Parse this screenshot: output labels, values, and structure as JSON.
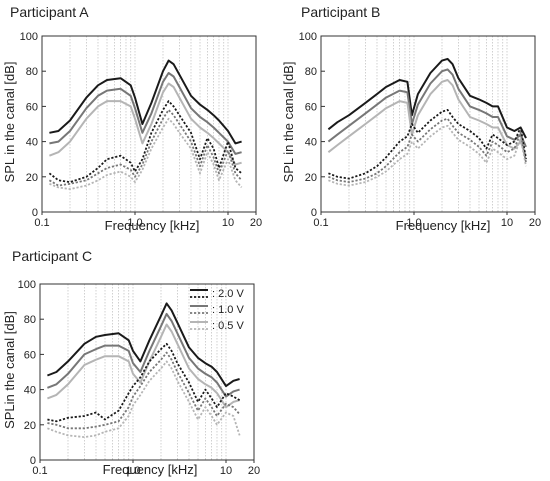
{
  "chart_data": [
    {
      "type": "line",
      "title": "Participant A",
      "xlabel": "Frequency [kHz]",
      "ylabel": "SPL in the canal [dB]",
      "xscale": "log",
      "xlim": [
        0.1,
        20
      ],
      "ylim": [
        0,
        100
      ],
      "xticks": [
        "0.1",
        "1.0",
        "10",
        "20"
      ],
      "yticks": [
        "0",
        "20",
        "40",
        "60",
        "80",
        "100"
      ],
      "grid": "vertical",
      "series": [
        {
          "level": "2.0 V",
          "kind": "solid",
          "color": "#1a1a1a",
          "x": [
            0.12,
            0.15,
            0.2,
            0.3,
            0.4,
            0.5,
            0.7,
            0.9,
            1.0,
            1.2,
            1.5,
            2.0,
            2.3,
            2.6,
            3.0,
            4.0,
            5.0,
            6.0,
            7.0,
            8.0,
            10.0,
            12.0,
            14.0
          ],
          "y": [
            45,
            46,
            52,
            65,
            72,
            75,
            76,
            72,
            65,
            50,
            62,
            80,
            86,
            84,
            78,
            66,
            61,
            58,
            55,
            52,
            46,
            39,
            40
          ]
        },
        {
          "level": "1.0 V",
          "kind": "solid",
          "color": "#777777",
          "x": [
            0.12,
            0.15,
            0.2,
            0.3,
            0.4,
            0.5,
            0.7,
            0.9,
            1.0,
            1.2,
            1.5,
            2.0,
            2.3,
            2.6,
            3.0,
            4.0,
            5.0,
            6.0,
            7.0,
            8.0,
            10.0,
            12.0,
            14.0
          ],
          "y": [
            39,
            40,
            46,
            59,
            66,
            69,
            70,
            66,
            59,
            45,
            56,
            74,
            79,
            77,
            71,
            59,
            54,
            51,
            48,
            45,
            40,
            33,
            34
          ]
        },
        {
          "level": "0.5 V",
          "kind": "solid",
          "color": "#b5b5b5",
          "x": [
            0.12,
            0.15,
            0.2,
            0.3,
            0.4,
            0.5,
            0.7,
            0.9,
            1.0,
            1.2,
            1.5,
            2.0,
            2.3,
            2.6,
            3.0,
            4.0,
            5.0,
            6.0,
            7.0,
            8.0,
            10.0,
            12.0,
            14.0
          ],
          "y": [
            32,
            34,
            40,
            53,
            60,
            63,
            63,
            60,
            53,
            39,
            50,
            68,
            73,
            71,
            65,
            53,
            48,
            45,
            42,
            39,
            34,
            27,
            28
          ]
        },
        {
          "level": "2.0 V",
          "kind": "dotted",
          "color": "#1a1a1a",
          "x": [
            0.12,
            0.15,
            0.2,
            0.3,
            0.4,
            0.5,
            0.7,
            0.9,
            1.0,
            1.2,
            1.5,
            2.0,
            2.3,
            2.6,
            3.0,
            4.0,
            5.0,
            6.0,
            7.0,
            8.0,
            10.0,
            12.0,
            14.0
          ],
          "y": [
            22,
            18,
            17,
            20,
            25,
            30,
            32,
            28,
            23,
            30,
            45,
            58,
            63,
            60,
            55,
            45,
            30,
            42,
            36,
            25,
            40,
            25,
            22
          ]
        },
        {
          "level": "1.0 V",
          "kind": "dotted",
          "color": "#777777",
          "x": [
            0.12,
            0.15,
            0.2,
            0.3,
            0.4,
            0.5,
            0.7,
            0.9,
            1.0,
            1.2,
            1.5,
            2.0,
            2.3,
            2.6,
            3.0,
            4.0,
            5.0,
            6.0,
            7.0,
            8.0,
            10.0,
            12.0,
            14.0
          ],
          "y": [
            18,
            15,
            16,
            18,
            22,
            25,
            27,
            24,
            20,
            27,
            40,
            53,
            58,
            55,
            50,
            40,
            26,
            38,
            31,
            22,
            35,
            22,
            18
          ]
        },
        {
          "level": "0.5 V",
          "kind": "dotted",
          "color": "#b5b5b5",
          "x": [
            0.12,
            0.15,
            0.2,
            0.3,
            0.4,
            0.5,
            0.7,
            0.9,
            1.0,
            1.2,
            1.5,
            2.0,
            2.3,
            2.6,
            3.0,
            4.0,
            5.0,
            6.0,
            7.0,
            8.0,
            10.0,
            12.0,
            14.0
          ],
          "y": [
            16,
            14,
            13,
            15,
            18,
            21,
            23,
            20,
            17,
            24,
            36,
            48,
            53,
            50,
            45,
            36,
            22,
            34,
            27,
            18,
            30,
            18,
            14
          ]
        }
      ]
    },
    {
      "type": "line",
      "title": "Participant B",
      "xlabel": "Frequency [kHz]",
      "ylabel": "SPL in the canal [dB]",
      "xscale": "log",
      "xlim": [
        0.1,
        20
      ],
      "ylim": [
        0,
        100
      ],
      "xticks": [
        "0.1",
        "1.0",
        "10",
        "20"
      ],
      "yticks": [
        "0",
        "20",
        "40",
        "60",
        "80",
        "100"
      ],
      "grid": "vertical",
      "series": [
        {
          "level": "2.0 V",
          "kind": "solid",
          "color": "#1a1a1a",
          "x": [
            0.12,
            0.15,
            0.2,
            0.3,
            0.4,
            0.5,
            0.7,
            0.85,
            0.95,
            1.1,
            1.5,
            2.0,
            2.3,
            2.6,
            3.0,
            4.0,
            5.0,
            6.0,
            7.0,
            8.0,
            10.0,
            12.0,
            14.0,
            16.0
          ],
          "y": [
            47,
            51,
            55,
            62,
            67,
            71,
            75,
            74,
            55,
            67,
            79,
            86,
            87,
            84,
            76,
            66,
            64,
            62,
            60,
            60,
            48,
            46,
            48,
            42
          ]
        },
        {
          "level": "1.0 V",
          "kind": "solid",
          "color": "#777777",
          "x": [
            0.12,
            0.15,
            0.2,
            0.3,
            0.4,
            0.5,
            0.7,
            0.85,
            0.95,
            1.1,
            1.5,
            2.0,
            2.3,
            2.6,
            3.0,
            4.0,
            5.0,
            6.0,
            7.0,
            8.0,
            10.0,
            12.0,
            14.0,
            16.0
          ],
          "y": [
            40,
            44,
            49,
            56,
            61,
            65,
            69,
            68,
            50,
            61,
            73,
            80,
            81,
            78,
            70,
            60,
            58,
            56,
            54,
            54,
            43,
            41,
            44,
            37
          ]
        },
        {
          "level": "0.5 V",
          "kind": "solid",
          "color": "#b5b5b5",
          "x": [
            0.12,
            0.15,
            0.2,
            0.3,
            0.4,
            0.5,
            0.7,
            0.85,
            0.95,
            1.1,
            1.5,
            2.0,
            2.3,
            2.6,
            3.0,
            4.0,
            5.0,
            6.0,
            7.0,
            8.0,
            10.0,
            12.0,
            14.0,
            16.0
          ],
          "y": [
            34,
            38,
            43,
            50,
            55,
            59,
            63,
            62,
            44,
            55,
            67,
            74,
            75,
            72,
            64,
            54,
            52,
            50,
            48,
            48,
            38,
            36,
            40,
            32
          ]
        },
        {
          "level": "2.0 V",
          "kind": "dotted",
          "color": "#1a1a1a",
          "x": [
            0.12,
            0.15,
            0.2,
            0.3,
            0.4,
            0.5,
            0.7,
            0.85,
            0.95,
            1.1,
            1.5,
            2.0,
            2.3,
            2.6,
            3.0,
            4.0,
            5.0,
            6.0,
            7.0,
            8.0,
            10.0,
            12.0,
            14.0,
            16.0
          ],
          "y": [
            22,
            20,
            19,
            22,
            26,
            31,
            40,
            43,
            50,
            45,
            52,
            57,
            58,
            54,
            50,
            46,
            42,
            36,
            44,
            42,
            38,
            40,
            48,
            30
          ]
        },
        {
          "level": "1.0 V",
          "kind": "dotted",
          "color": "#777777",
          "x": [
            0.12,
            0.15,
            0.2,
            0.3,
            0.4,
            0.5,
            0.7,
            0.85,
            0.95,
            1.1,
            1.5,
            2.0,
            2.3,
            2.6,
            3.0,
            4.0,
            5.0,
            6.0,
            7.0,
            8.0,
            10.0,
            12.0,
            14.0,
            16.0
          ],
          "y": [
            20,
            18,
            17,
            19,
            22,
            26,
            34,
            37,
            44,
            40,
            47,
            52,
            53,
            49,
            45,
            41,
            37,
            32,
            40,
            38,
            34,
            36,
            45,
            28
          ]
        },
        {
          "level": "0.5 V",
          "kind": "dotted",
          "color": "#b5b5b5",
          "x": [
            0.12,
            0.15,
            0.2,
            0.3,
            0.4,
            0.5,
            0.7,
            0.85,
            0.95,
            1.1,
            1.5,
            2.0,
            2.3,
            2.6,
            3.0,
            4.0,
            5.0,
            6.0,
            7.0,
            8.0,
            10.0,
            12.0,
            14.0,
            16.0
          ],
          "y": [
            18,
            16,
            15,
            17,
            20,
            23,
            30,
            33,
            40,
            36,
            43,
            48,
            49,
            45,
            41,
            37,
            33,
            28,
            36,
            34,
            30,
            32,
            42,
            26
          ]
        }
      ]
    },
    {
      "type": "line",
      "title": "Participant C",
      "xlabel": "Frequency [kHz]",
      "ylabel": "SPLin the canal  [dB]",
      "xscale": "log",
      "xlim": [
        0.1,
        20
      ],
      "ylim": [
        0,
        100
      ],
      "xticks": [
        "0.1",
        "1.0",
        "10",
        "20"
      ],
      "yticks": [
        "0",
        "20",
        "40",
        "60",
        "80",
        "100"
      ],
      "grid": "vertical",
      "legend": {
        "placement": "top-right",
        "entries": [
          {
            "label": ": 2.0 V",
            "color": "#1a1a1a"
          },
          {
            "label": ": 1.0 V",
            "color": "#777777"
          },
          {
            "label": ": 0.5 V",
            "color": "#b5b5b5"
          }
        ]
      },
      "series": [
        {
          "level": "2.0 V",
          "kind": "solid",
          "color": "#1a1a1a",
          "x": [
            0.12,
            0.15,
            0.2,
            0.3,
            0.4,
            0.5,
            0.7,
            0.9,
            1.0,
            1.2,
            1.5,
            2.0,
            2.3,
            2.6,
            3.0,
            4.0,
            5.0,
            6.0,
            7.0,
            8.0,
            10.0,
            12.0,
            14.0
          ],
          "y": [
            48,
            50,
            56,
            66,
            70,
            71,
            72,
            68,
            62,
            56,
            68,
            82,
            89,
            85,
            78,
            64,
            58,
            55,
            53,
            50,
            42,
            45,
            46
          ]
        },
        {
          "level": "1.0 V",
          "kind": "solid",
          "color": "#777777",
          "x": [
            0.12,
            0.15,
            0.2,
            0.3,
            0.4,
            0.5,
            0.7,
            0.9,
            1.0,
            1.2,
            1.5,
            2.0,
            2.3,
            2.6,
            3.0,
            4.0,
            5.0,
            6.0,
            7.0,
            8.0,
            10.0,
            12.0,
            14.0
          ],
          "y": [
            41,
            43,
            49,
            60,
            63,
            65,
            65,
            62,
            55,
            50,
            62,
            76,
            83,
            79,
            72,
            58,
            52,
            49,
            47,
            44,
            36,
            39,
            40
          ]
        },
        {
          "level": "0.5 V",
          "kind": "solid",
          "color": "#b5b5b5",
          "x": [
            0.12,
            0.15,
            0.2,
            0.3,
            0.4,
            0.5,
            0.7,
            0.9,
            1.0,
            1.2,
            1.5,
            2.0,
            2.3,
            2.6,
            3.0,
            4.0,
            5.0,
            6.0,
            7.0,
            8.0,
            10.0,
            12.0,
            14.0
          ],
          "y": [
            35,
            37,
            43,
            54,
            57,
            59,
            59,
            56,
            49,
            44,
            56,
            70,
            77,
            73,
            66,
            52,
            46,
            43,
            41,
            38,
            30,
            33,
            34
          ]
        },
        {
          "level": "2.0 V",
          "kind": "dotted",
          "color": "#1a1a1a",
          "x": [
            0.12,
            0.15,
            0.2,
            0.3,
            0.4,
            0.5,
            0.7,
            0.9,
            1.0,
            1.2,
            1.5,
            2.0,
            2.3,
            2.6,
            3.0,
            4.0,
            5.0,
            6.0,
            7.0,
            8.0,
            10.0,
            12.0,
            14.0
          ],
          "y": [
            23,
            22,
            24,
            25,
            27,
            23,
            28,
            38,
            42,
            47,
            56,
            63,
            66,
            62,
            55,
            44,
            33,
            40,
            35,
            30,
            38,
            36,
            34
          ]
        },
        {
          "level": "1.0 V",
          "kind": "dotted",
          "color": "#777777",
          "x": [
            0.12,
            0.15,
            0.2,
            0.3,
            0.4,
            0.5,
            0.7,
            0.9,
            1.0,
            1.2,
            1.5,
            2.0,
            2.3,
            2.6,
            3.0,
            4.0,
            5.0,
            6.0,
            7.0,
            8.0,
            10.0,
            12.0,
            14.0
          ],
          "y": [
            21,
            20,
            18,
            18,
            19,
            20,
            22,
            30,
            36,
            42,
            50,
            57,
            61,
            57,
            50,
            38,
            28,
            35,
            30,
            25,
            32,
            30,
            26
          ]
        },
        {
          "level": "0.5 V",
          "kind": "dotted",
          "color": "#b5b5b5",
          "x": [
            0.12,
            0.15,
            0.2,
            0.3,
            0.4,
            0.5,
            0.7,
            0.9,
            1.0,
            1.2,
            1.5,
            2.0,
            2.3,
            2.6,
            3.0,
            4.0,
            5.0,
            6.0,
            7.0,
            8.0,
            10.0,
            12.0,
            14.0
          ],
          "y": [
            18,
            16,
            14,
            13,
            14,
            16,
            18,
            25,
            31,
            37,
            45,
            52,
            56,
            52,
            45,
            33,
            23,
            30,
            25,
            20,
            27,
            25,
            14
          ]
        }
      ]
    }
  ]
}
